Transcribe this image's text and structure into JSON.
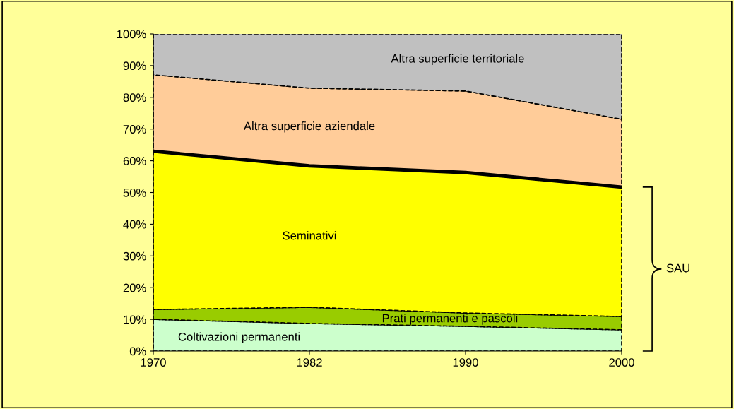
{
  "chart_data": {
    "type": "area",
    "stacked": true,
    "categories": [
      "1970",
      "1982",
      "1990",
      "2000"
    ],
    "series": [
      {
        "name": "Coltivazioni permanenti",
        "color": "#ccffcc",
        "values": [
          10.0,
          8.7,
          7.8,
          6.7
        ]
      },
      {
        "name": "Prati permanenti e pascoli",
        "color": "#99cc00",
        "values": [
          3.1,
          5.1,
          4.2,
          4.2
        ]
      },
      {
        "name": "Seminativi",
        "color": "#ffff00",
        "values": [
          49.9,
          44.6,
          44.3,
          40.8
        ]
      },
      {
        "name": "Altra superficie aziendale",
        "color": "#ffcc99",
        "values": [
          24.1,
          24.5,
          25.7,
          21.4
        ]
      },
      {
        "name": "Altra superficie territoriale",
        "color": "#c0c0c0",
        "values": [
          12.9,
          17.1,
          18.0,
          26.9
        ]
      }
    ],
    "ylim": [
      0,
      100
    ],
    "yticks": [
      {
        "value": 0,
        "label": "0%"
      },
      {
        "value": 10,
        "label": "10%"
      },
      {
        "value": 20,
        "label": "20%"
      },
      {
        "value": 30,
        "label": "30%"
      },
      {
        "value": 40,
        "label": "40%"
      },
      {
        "value": 50,
        "label": "50%"
      },
      {
        "value": 60,
        "label": "60%"
      },
      {
        "value": 70,
        "label": "70%"
      },
      {
        "value": 80,
        "label": "80%"
      },
      {
        "value": 90,
        "label": "90%"
      },
      {
        "value": 100,
        "label": "100%"
      }
    ],
    "annotations": [
      "SAU"
    ],
    "grid": false,
    "legend": false
  }
}
